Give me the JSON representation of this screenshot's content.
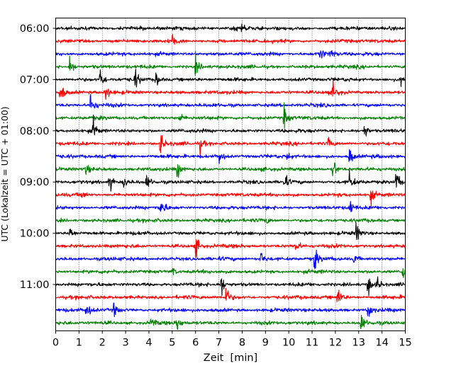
{
  "chart_data": {
    "type": "line",
    "title": "",
    "xlabel": "Zeit  [min]",
    "ylabel": "UTC (Lokalzeit = UTC + 01:00)",
    "xlim": [
      0,
      15
    ],
    "xticks": [
      "0",
      "1",
      "2",
      "3",
      "4",
      "5",
      "6",
      "7",
      "8",
      "9",
      "10",
      "11",
      "12",
      "13",
      "14",
      "15"
    ],
    "yticks": [
      "06:00",
      "07:00",
      "08:00",
      "09:00",
      "10:00",
      "11:00"
    ],
    "grid": "vertical dotted",
    "trace_colors": [
      "#000000",
      "#ff0000",
      "#0000ff",
      "#008000"
    ],
    "traces": [
      {
        "start": "06:00",
        "color": "#000000",
        "events": [
          [
            8.0,
            0.5
          ],
          [
            7.6,
            0.3
          ]
        ]
      },
      {
        "start": "06:15",
        "color": "#ff0000",
        "events": [
          [
            5.0,
            0.6
          ]
        ]
      },
      {
        "start": "06:30",
        "color": "#0000ff",
        "events": [
          [
            11.3,
            0.8
          ],
          [
            11.8,
            0.5
          ]
        ]
      },
      {
        "start": "06:45",
        "color": "#008000",
        "events": [
          [
            0.6,
            0.9
          ],
          [
            6.0,
            0.7
          ]
        ]
      },
      {
        "start": "07:00",
        "color": "#000000",
        "events": [
          [
            1.9,
            1.0
          ],
          [
            3.4,
            0.9
          ],
          [
            4.3,
            0.7
          ],
          [
            14.8,
            0.6
          ]
        ]
      },
      {
        "start": "07:15",
        "color": "#ff0000",
        "events": [
          [
            0.2,
            1.0
          ],
          [
            2.1,
            0.8
          ],
          [
            11.9,
            0.7
          ]
        ]
      },
      {
        "start": "07:30",
        "color": "#0000ff",
        "events": [
          [
            1.5,
            1.0
          ]
        ]
      },
      {
        "start": "07:45",
        "color": "#008000",
        "events": [
          [
            9.8,
            1.0
          ],
          [
            5.3,
            0.4
          ]
        ]
      },
      {
        "start": "08:00",
        "color": "#000000",
        "events": [
          [
            1.6,
            0.9
          ],
          [
            13.2,
            0.9
          ]
        ]
      },
      {
        "start": "08:15",
        "color": "#ff0000",
        "events": [
          [
            4.5,
            1.0
          ],
          [
            6.2,
            0.6
          ],
          [
            11.7,
            0.5
          ]
        ]
      },
      {
        "start": "08:30",
        "color": "#0000ff",
        "events": [
          [
            7.0,
            0.8
          ],
          [
            12.6,
            0.9
          ],
          [
            9.9,
            0.4
          ]
        ]
      },
      {
        "start": "08:45",
        "color": "#008000",
        "events": [
          [
            11.9,
            1.0
          ],
          [
            5.2,
            0.8
          ],
          [
            1.3,
            0.4
          ]
        ]
      },
      {
        "start": "09:00",
        "color": "#000000",
        "events": [
          [
            2.3,
            0.9
          ],
          [
            2.9,
            0.6
          ],
          [
            3.9,
            0.7
          ],
          [
            9.8,
            0.8
          ],
          [
            12.6,
            0.8
          ],
          [
            14.6,
            1.0
          ]
        ]
      },
      {
        "start": "09:15",
        "color": "#ff0000",
        "events": [
          [
            13.5,
            0.8
          ],
          [
            1.1,
            0.4
          ]
        ]
      },
      {
        "start": "09:30",
        "color": "#0000ff",
        "events": [
          [
            4.5,
            1.0
          ],
          [
            12.6,
            0.8
          ]
        ]
      },
      {
        "start": "09:45",
        "color": "#008000",
        "events": [
          [
            9.0,
            0.3
          ]
        ]
      },
      {
        "start": "10:00",
        "color": "#000000",
        "events": [
          [
            0.6,
            0.6
          ],
          [
            12.9,
            0.9
          ]
        ]
      },
      {
        "start": "10:15",
        "color": "#ff0000",
        "events": [
          [
            6.0,
            1.0
          ],
          [
            10.3,
            0.6
          ]
        ]
      },
      {
        "start": "10:30",
        "color": "#0000ff",
        "events": [
          [
            11.1,
            1.0
          ],
          [
            8.8,
            0.6
          ],
          [
            12.8,
            0.5
          ]
        ]
      },
      {
        "start": "10:45",
        "color": "#008000",
        "events": [
          [
            14.9,
            0.8
          ],
          [
            5.0,
            0.4
          ]
        ]
      },
      {
        "start": "11:00",
        "color": "#000000",
        "events": [
          [
            7.1,
            1.0
          ],
          [
            13.4,
            1.0
          ],
          [
            13.8,
            0.6
          ]
        ]
      },
      {
        "start": "11:15",
        "color": "#ff0000",
        "events": [
          [
            7.3,
            1.0
          ],
          [
            12.1,
            0.9
          ]
        ]
      },
      {
        "start": "11:30",
        "color": "#0000ff",
        "events": [
          [
            1.3,
            0.9
          ],
          [
            2.5,
            0.6
          ],
          [
            13.4,
            0.8
          ]
        ]
      },
      {
        "start": "11:45",
        "color": "#008000",
        "events": [
          [
            5.2,
            0.8
          ],
          [
            13.1,
            0.9
          ],
          [
            4.1,
            0.4
          ]
        ]
      }
    ]
  }
}
